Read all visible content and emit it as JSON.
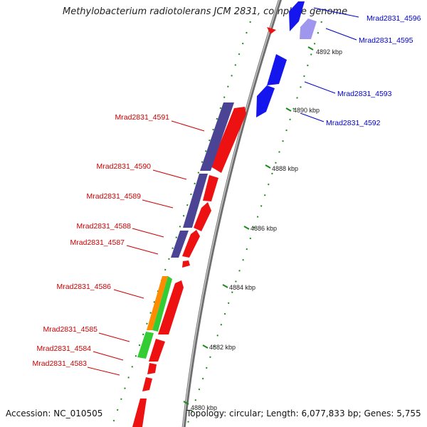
{
  "title": "Methylobacterium radiotolerans JCM 2831, complete genome",
  "accession": "Accession: NC_010505",
  "topology": "Topology: circular; Length: 6,077,833 bp; Genes: 5,755",
  "colors": {
    "forward": "#ee1111",
    "reverse": "#1515ee",
    "rna": "#4b4393",
    "orange": "#ff8c00",
    "green": "#33cc33",
    "ticks": "#1a8a1a",
    "axis": "#808080",
    "label_red": "#cc0000",
    "label_blue": "#0000cc"
  },
  "scale_labels": [
    "4892 kbp",
    "4890 kbp",
    "4888 kbp",
    "4886 kbp",
    "4884 kbp",
    "4882 kbp",
    "4880 kbp"
  ],
  "gene_labels": {
    "blue": [
      "Mrad2831_4596",
      "Mrad2831_4595",
      "Mrad2831_4593",
      "Mrad2831_4592"
    ],
    "red": [
      "Mrad2831_4591",
      "Mrad2831_4590",
      "Mrad2831_4589",
      "Mrad2831_4588",
      "Mrad2831_4587",
      "Mrad2831_4586",
      "Mrad2831_4585",
      "Mrad2831_4584",
      "Mrad2831_4583"
    ]
  }
}
